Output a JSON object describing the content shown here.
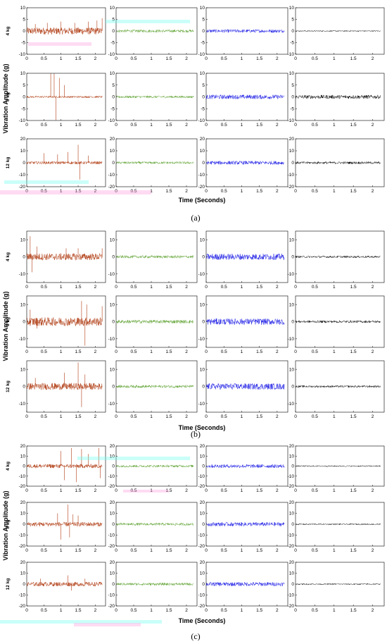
{
  "figure": {
    "ylabel": "Vibration Amplitude (g)",
    "xlabel": "Time (Seconds)",
    "loads": [
      "4 kg",
      "8 kg",
      "12 kg"
    ],
    "series_colors": [
      "#b03a10",
      "#5aa02c",
      "#1a1ae6",
      "#000000"
    ],
    "artifact_colors": [
      "#ff99dd",
      "#66ffee"
    ]
  },
  "chart_data": [
    {
      "panel_label": "(a)",
      "type": "line",
      "xlabel": "Time (Seconds)",
      "ylabel": "Vibration Amplitude (g)",
      "xlim": [
        0,
        2.3
      ],
      "xticks": [
        0,
        0.5,
        1,
        1.5,
        2
      ],
      "rows": [
        {
          "load": "4 kg",
          "ylim": [
            -10,
            10
          ],
          "yticks": [
            -10,
            -5,
            0,
            5,
            10
          ],
          "amplitudes": [
            1.5,
            0.6,
            0.7,
            0.25
          ],
          "spikes": [
            [
              0.25,
              3
            ],
            [
              0.6,
              3.5
            ],
            [
              1.0,
              4
            ],
            [
              1.4,
              3.5
            ],
            [
              1.8,
              4
            ],
            [
              2.05,
              4.5
            ],
            [
              2.2,
              5.5
            ]
          ]
        },
        {
          "load": "8 kg",
          "ylim": [
            -10,
            10
          ],
          "yticks": [
            -10,
            -5,
            0,
            5,
            10
          ],
          "amplitudes": [
            0.4,
            0.5,
            0.9,
            0.8
          ],
          "spikes": [
            [
              0.7,
              10
            ],
            [
              0.8,
              14
            ],
            [
              0.85,
              -20
            ],
            [
              0.95,
              8
            ],
            [
              1.1,
              5
            ]
          ]
        },
        {
          "load": "12 kg",
          "ylim": [
            -20,
            20
          ],
          "yticks": [
            -20,
            -10,
            0,
            10,
            20
          ],
          "amplitudes": [
            1.2,
            1.0,
            1.5,
            1.0
          ],
          "spikes": [
            [
              0.5,
              8
            ],
            [
              0.9,
              7
            ],
            [
              1.2,
              9
            ],
            [
              1.5,
              15
            ],
            [
              1.55,
              -14
            ],
            [
              1.8,
              6
            ]
          ]
        }
      ]
    },
    {
      "panel_label": "(b)",
      "type": "line",
      "xlabel": "Time (Seconds)",
      "ylabel": "Vibration Amplitude (g)",
      "xlim": [
        0,
        2.3
      ],
      "xticks": [
        0,
        0.5,
        1,
        1.5,
        2
      ],
      "rows": [
        {
          "load": "4 kg",
          "ylim": [
            -15,
            15
          ],
          "yticks": [
            -10,
            0,
            10
          ],
          "amplitudes": [
            2.0,
            0.8,
            1.8,
            0.6
          ],
          "spikes": [
            [
              0.1,
              12
            ],
            [
              0.15,
              -9
            ],
            [
              0.3,
              6
            ],
            [
              1.15,
              5
            ],
            [
              1.5,
              5
            ],
            [
              2.2,
              5
            ]
          ]
        },
        {
          "load": "8 kg",
          "ylim": [
            -15,
            15
          ],
          "yticks": [
            -10,
            0,
            10
          ],
          "amplitudes": [
            2.5,
            1.0,
            1.8,
            0.7
          ],
          "spikes": [
            [
              0.1,
              7
            ],
            [
              0.3,
              -4
            ],
            [
              1.6,
              12
            ],
            [
              1.7,
              -14
            ],
            [
              1.75,
              10
            ],
            [
              2.2,
              9
            ]
          ]
        },
        {
          "load": "12 kg",
          "ylim": [
            -15,
            15
          ],
          "yticks": [
            -10,
            0,
            10
          ],
          "amplitudes": [
            2.0,
            0.8,
            1.8,
            0.6
          ],
          "spikes": [
            [
              0.25,
              5
            ],
            [
              1.1,
              8
            ],
            [
              1.5,
              14
            ],
            [
              1.6,
              -12
            ],
            [
              1.7,
              7
            ]
          ]
        }
      ]
    },
    {
      "panel_label": "(c)",
      "type": "line",
      "xlabel": "Time (Seconds)",
      "ylabel": "Vibration Amplitude (g)",
      "xlim": [
        0,
        2.3
      ],
      "xticks": [
        0,
        0.5,
        1,
        1.5,
        2
      ],
      "rows": [
        {
          "load": "4 kg",
          "ylim": [
            -20,
            20
          ],
          "yticks": [
            -20,
            -10,
            0,
            10,
            20
          ],
          "amplitudes": [
            2.0,
            1.2,
            1.8,
            0.6
          ],
          "spikes": [
            [
              1.0,
              15
            ],
            [
              1.1,
              -14
            ],
            [
              1.3,
              18
            ],
            [
              1.45,
              -16
            ],
            [
              1.6,
              17
            ],
            [
              1.8,
              12
            ],
            [
              2.1,
              18
            ],
            [
              2.15,
              -12
            ]
          ]
        },
        {
          "load": "8 kg",
          "ylim": [
            -20,
            20
          ],
          "yticks": [
            -20,
            -10,
            0,
            10,
            20
          ],
          "amplitudes": [
            2.0,
            1.2,
            1.8,
            0.6
          ],
          "spikes": [
            [
              0.9,
              10
            ],
            [
              1.0,
              -14
            ],
            [
              1.2,
              18
            ],
            [
              1.25,
              -12
            ],
            [
              1.35,
              9
            ],
            [
              1.5,
              8
            ]
          ]
        },
        {
          "load": "12 kg",
          "ylim": [
            -20,
            20
          ],
          "yticks": [
            -20,
            -10,
            0,
            10,
            20
          ],
          "amplitudes": [
            2.0,
            1.2,
            1.8,
            0.6
          ],
          "spikes": [
            [
              0.4,
              5
            ],
            [
              1.2,
              8
            ],
            [
              1.3,
              -6
            ],
            [
              1.7,
              5
            ]
          ]
        }
      ]
    }
  ]
}
